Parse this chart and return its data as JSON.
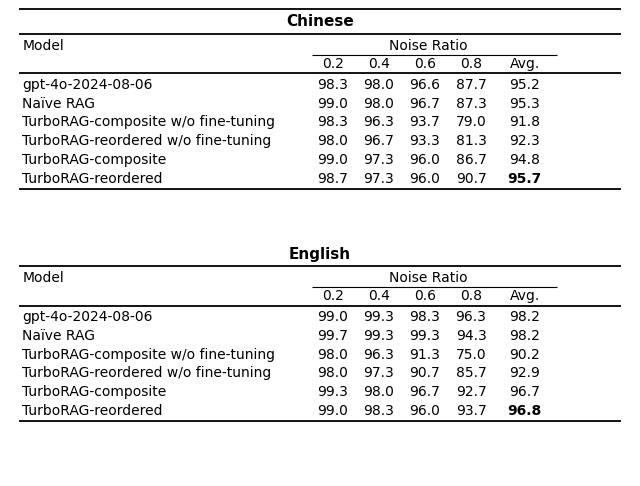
{
  "chinese_title": "Chinese",
  "english_title": "English",
  "noise_ratio_label": "Noise Ratio",
  "model_label": "Model",
  "columns": [
    "0.2",
    "0.4",
    "0.6",
    "0.8",
    "Avg."
  ],
  "chinese_rows": [
    [
      "gpt-4o-2024-08-06",
      "98.3",
      "98.0",
      "96.6",
      "87.7",
      "95.2"
    ],
    [
      "Naïve RAG",
      "99.0",
      "98.0",
      "96.7",
      "87.3",
      "95.3"
    ],
    [
      "TurboRAG-composite w/o fine-tuning",
      "98.3",
      "96.3",
      "93.7",
      "79.0",
      "91.8"
    ],
    [
      "TurboRAG-reordered w/o fine-tuning",
      "98.0",
      "96.7",
      "93.3",
      "81.3",
      "92.3"
    ],
    [
      "TurboRAG-composite",
      "99.0",
      "97.3",
      "96.0",
      "86.7",
      "94.8"
    ],
    [
      "TurboRAG-reordered",
      "98.7",
      "97.3",
      "96.0",
      "90.7",
      "95.7"
    ]
  ],
  "chinese_bold_last": [
    false,
    false,
    false,
    false,
    false,
    true
  ],
  "english_rows": [
    [
      "gpt-4o-2024-08-06",
      "99.0",
      "99.3",
      "98.3",
      "96.3",
      "98.2"
    ],
    [
      "Naïve RAG",
      "99.7",
      "99.3",
      "99.3",
      "94.3",
      "98.2"
    ],
    [
      "TurboRAG-composite w/o fine-tuning",
      "98.0",
      "96.3",
      "91.3",
      "75.0",
      "90.2"
    ],
    [
      "TurboRAG-reordered w/o fine-tuning",
      "98.0",
      "97.3",
      "90.7",
      "85.7",
      "92.9"
    ],
    [
      "TurboRAG-composite",
      "99.3",
      "98.0",
      "96.7",
      "92.7",
      "96.7"
    ],
    [
      "TurboRAG-reordered",
      "99.0",
      "98.3",
      "96.0",
      "93.7",
      "96.8"
    ]
  ],
  "english_bold_last": [
    false,
    false,
    false,
    false,
    false,
    true
  ],
  "bg_color": "#ffffff",
  "line_color": "#000000",
  "title_fontsize": 11,
  "header_fontsize": 10,
  "data_fontsize": 10,
  "figsize": [
    6.4,
    4.86
  ],
  "dpi": 100
}
